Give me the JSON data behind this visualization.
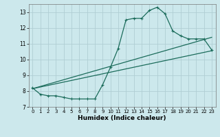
{
  "title": "",
  "xlabel": "Humidex (Indice chaleur)",
  "bg_color": "#cce8ec",
  "grid_color": "#b0ced4",
  "line_color": "#1a6b5a",
  "xlim": [
    -0.5,
    23.5
  ],
  "ylim": [
    7,
    13.5
  ],
  "xticks": [
    0,
    1,
    2,
    3,
    4,
    5,
    6,
    7,
    8,
    9,
    10,
    11,
    12,
    13,
    14,
    15,
    16,
    17,
    18,
    19,
    20,
    21,
    22,
    23
  ],
  "yticks": [
    7,
    8,
    9,
    10,
    11,
    12,
    13
  ],
  "curve1_x": [
    0,
    1,
    2,
    3,
    4,
    5,
    6,
    7,
    8,
    9,
    10,
    11,
    12,
    13,
    14,
    15,
    16,
    17,
    18,
    19,
    20,
    21,
    22,
    23
  ],
  "curve1_y": [
    8.2,
    7.8,
    7.7,
    7.7,
    7.6,
    7.5,
    7.5,
    7.5,
    7.5,
    8.4,
    9.5,
    10.7,
    12.5,
    12.6,
    12.6,
    13.1,
    13.3,
    12.9,
    11.8,
    11.5,
    11.3,
    11.3,
    11.3,
    10.6
  ],
  "curve2_x": [
    0,
    23
  ],
  "curve2_y": [
    8.15,
    10.55
  ],
  "curve3_x": [
    0,
    23
  ],
  "curve3_y": [
    8.15,
    11.4
  ]
}
